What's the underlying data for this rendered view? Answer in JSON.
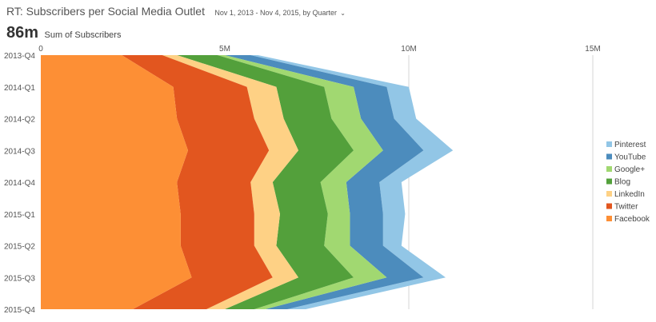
{
  "header": {
    "title": "RT: Subscribers per Social Media Outlet",
    "date_range": "Nov 1, 2013 - Nov 4, 2015, by Quarter",
    "total": "86m",
    "metric_label": "Sum of Subscribers"
  },
  "chart_data": {
    "type": "area",
    "orientation": "horizontal-stacked",
    "categories": [
      "2013-Q4",
      "2014-Q1",
      "2014-Q2",
      "2014-Q3",
      "2014-Q4",
      "2015-Q1",
      "2015-Q2",
      "2015-Q3",
      "2015-Q4"
    ],
    "x_ticks": [
      0,
      5,
      10,
      15
    ],
    "x_tick_labels": [
      "0",
      "5M",
      "10M",
      "15M"
    ],
    "xlim": [
      0,
      15.5
    ],
    "value_unit": "millions",
    "grid": true,
    "legend_position": "right",
    "series": [
      {
        "name": "Facebook",
        "color": "#fd8f35",
        "values": [
          2.2,
          3.6,
          3.7,
          4.0,
          3.7,
          3.8,
          3.8,
          4.1,
          2.5
        ]
      },
      {
        "name": "Twitter",
        "color": "#e2561f",
        "values": [
          1.1,
          2.0,
          2.1,
          2.2,
          2.0,
          2.0,
          2.0,
          2.2,
          2.0
        ]
      },
      {
        "name": "LinkedIn",
        "color": "#fed185",
        "values": [
          0.4,
          0.8,
          0.8,
          0.8,
          0.6,
          0.7,
          0.6,
          0.7,
          0.5
        ]
      },
      {
        "name": "Blog",
        "color": "#53a03b",
        "values": [
          1.1,
          1.3,
          1.3,
          1.5,
          1.3,
          1.3,
          1.3,
          1.5,
          0.8
        ]
      },
      {
        "name": "Google+",
        "color": "#a1d871",
        "values": [
          0.2,
          0.8,
          0.8,
          0.8,
          0.7,
          0.6,
          0.7,
          0.9,
          0.3
        ]
      },
      {
        "name": "YouTube",
        "color": "#4c8cbd",
        "values": [
          0.7,
          0.9,
          0.9,
          1.1,
          0.9,
          0.9,
          0.9,
          1.0,
          0.6
        ]
      },
      {
        "name": "Pinterest",
        "color": "#92c6e6",
        "values": [
          0.2,
          0.6,
          0.6,
          0.8,
          0.6,
          0.6,
          0.5,
          0.6,
          0.5
        ]
      }
    ],
    "legend_order": [
      "Pinterest",
      "YouTube",
      "Google+",
      "Blog",
      "LinkedIn",
      "Twitter",
      "Facebook"
    ]
  }
}
